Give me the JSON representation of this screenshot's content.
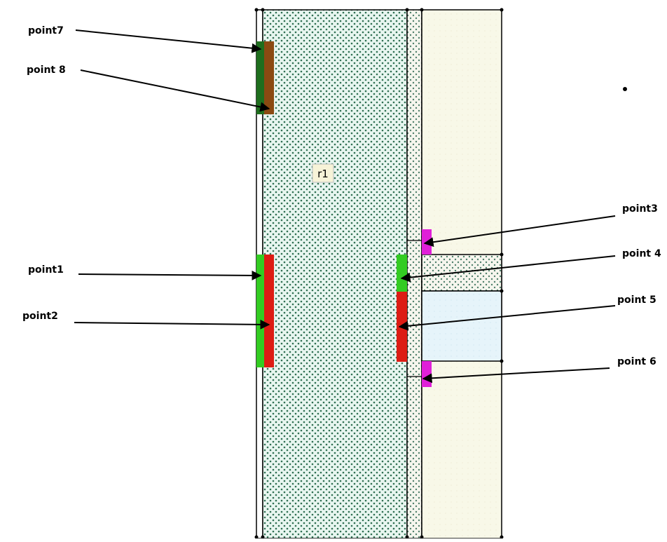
{
  "labels": {
    "point7": "point7",
    "point8": "point 8",
    "point1": "point1",
    "point2": "point2",
    "point3": "point3",
    "point4": "point 4",
    "point5": "point 5",
    "point6": "point 6",
    "region": "r1"
  },
  "colors": {
    "dot_fill": "#2f6f52",
    "main_region_bg": "#e8f6f0",
    "right_column_bg": "#f8f8e8",
    "light_blue_region": "#e6f4fa",
    "point1_green": "#33cc22",
    "point2_red": "#dd1c14",
    "point7_dark_green": "#1f6e1e",
    "point8_brown": "#8b4a12",
    "magenta_marker": "#e020d8",
    "line": "#000000"
  }
}
